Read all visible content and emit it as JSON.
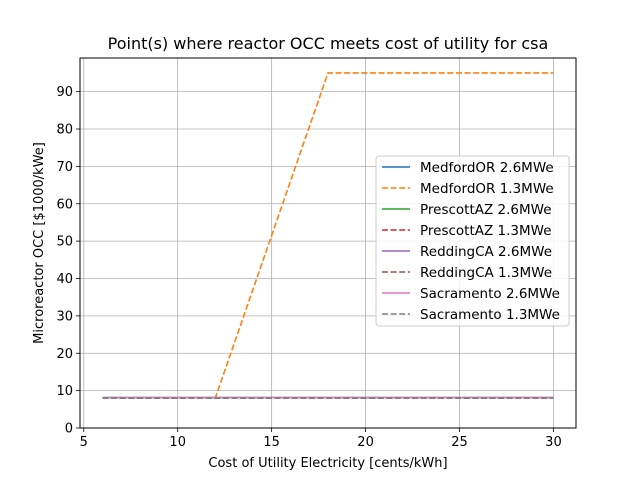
{
  "chart_data": {
    "type": "line",
    "title": "Point(s) where reactor OCC meets cost of utility for csa",
    "xlabel": "Cost of Utility Electricity [cents/kWh]",
    "ylabel": "Microreactor OCC [$1000/kWe]",
    "xlim": [
      4.8,
      31.2
    ],
    "ylim": [
      0,
      99
    ],
    "xticks": [
      5,
      10,
      15,
      20,
      25,
      30
    ],
    "yticks": [
      0,
      10,
      20,
      30,
      40,
      50,
      60,
      70,
      80,
      90
    ],
    "grid": true,
    "legend_position": "center-right",
    "series": [
      {
        "name": "MedfordOR 2.6MWe",
        "color": "#1f77b4",
        "dash": "solid",
        "x": [
          6,
          30
        ],
        "y": [
          8.1,
          8.1
        ]
      },
      {
        "name": "MedfordOR 1.3MWe",
        "color": "#ff7f0e",
        "dash": "dashed",
        "x": [
          6,
          12,
          18,
          30
        ],
        "y": [
          8.0,
          8.0,
          95,
          95
        ]
      },
      {
        "name": "PrescottAZ 2.6MWe",
        "color": "#2ca02c",
        "dash": "solid",
        "x": [
          6,
          30
        ],
        "y": [
          8.1,
          8.1
        ]
      },
      {
        "name": "PrescottAZ 1.3MWe",
        "color": "#d62728",
        "dash": "dashed",
        "x": [
          6,
          30
        ],
        "y": [
          8.0,
          8.0
        ]
      },
      {
        "name": "ReddingCA 2.6MWe",
        "color": "#9467bd",
        "dash": "solid",
        "x": [
          6,
          30
        ],
        "y": [
          8.1,
          8.1
        ]
      },
      {
        "name": "ReddingCA 1.3MWe",
        "color": "#8c564b",
        "dash": "dashed",
        "x": [
          6,
          30
        ],
        "y": [
          8.0,
          8.0
        ]
      },
      {
        "name": "Sacramento 2.6MWe",
        "color": "#e377c2",
        "dash": "solid",
        "x": [
          6,
          30
        ],
        "y": [
          8.1,
          8.1
        ]
      },
      {
        "name": "Sacramento 1.3MWe",
        "color": "#7f7f7f",
        "dash": "dashed",
        "x": [
          6,
          30
        ],
        "y": [
          8.0,
          8.0
        ]
      }
    ]
  }
}
